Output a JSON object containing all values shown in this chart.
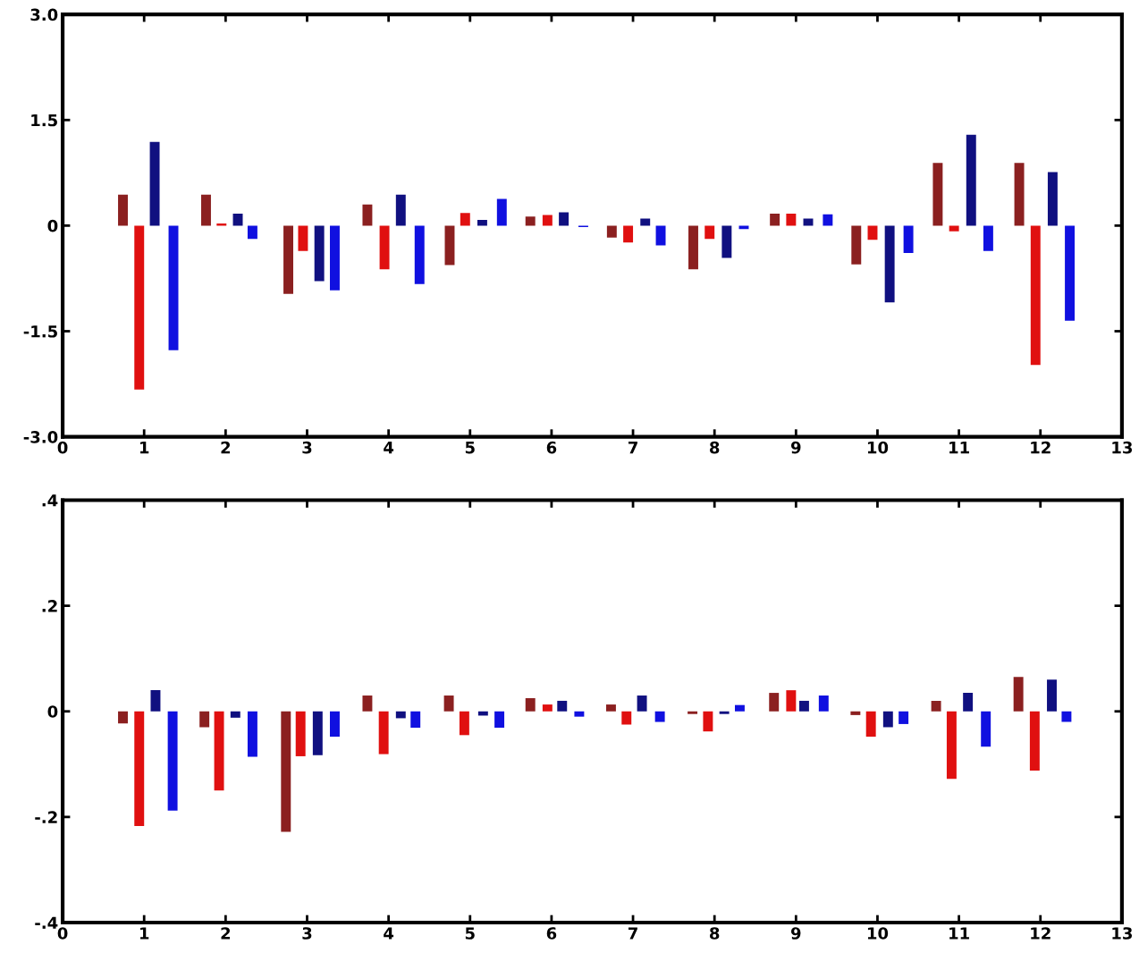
{
  "chart_data": [
    {
      "type": "bar",
      "xlim": [
        0,
        13
      ],
      "xticks": [
        0,
        1,
        2,
        3,
        4,
        5,
        6,
        7,
        8,
        9,
        10,
        11,
        12,
        13
      ],
      "ylim": [
        -3.0,
        3.0
      ],
      "yticks": [
        {
          "value": 3.0,
          "label": "3.0"
        },
        1.5,
        0,
        -1.5,
        {
          "value": -3.0,
          "label": "-3.0"
        }
      ],
      "grid": false,
      "series": [
        {
          "color": "#8b2020",
          "x": [
            0.74,
            1.76,
            2.77,
            3.74,
            4.75,
            5.74,
            6.74,
            7.74,
            8.74,
            9.74,
            10.74,
            11.74
          ],
          "values": [
            0.44,
            0.44,
            -0.97,
            0.3,
            -0.56,
            0.13,
            -0.17,
            -0.62,
            0.17,
            -0.55,
            0.89,
            0.89
          ]
        },
        {
          "color": "#e01010",
          "x": [
            0.94,
            1.95,
            2.95,
            3.95,
            4.94,
            5.95,
            6.94,
            7.94,
            8.94,
            9.94,
            10.94,
            11.94
          ],
          "values": [
            -2.33,
            0.03,
            -0.36,
            -0.62,
            0.18,
            0.15,
            -0.24,
            -0.19,
            0.17,
            -0.2,
            -0.08,
            -1.98
          ]
        },
        {
          "color": "#101080",
          "x": [
            1.13,
            2.15,
            3.15,
            4.15,
            5.15,
            6.15,
            7.15,
            8.15,
            9.15,
            10.15,
            11.15,
            12.15
          ],
          "values": [
            1.19,
            0.17,
            -0.79,
            0.44,
            0.08,
            0.19,
            0.1,
            -0.46,
            0.1,
            -1.09,
            1.29,
            0.76
          ]
        },
        {
          "color": "#1010e0",
          "x": [
            1.36,
            2.33,
            3.34,
            4.38,
            5.39,
            6.39,
            7.34,
            8.36,
            9.39,
            10.38,
            11.36,
            12.36
          ],
          "values": [
            -1.77,
            -0.19,
            -0.92,
            -0.83,
            0.38,
            -0.02,
            -0.28,
            -0.05,
            0.16,
            -0.39,
            -0.36,
            -1.35
          ]
        }
      ]
    },
    {
      "type": "bar",
      "xlim": [
        0,
        13
      ],
      "xticks": [
        0,
        1,
        2,
        3,
        4,
        5,
        6,
        7,
        8,
        9,
        10,
        11,
        12,
        13
      ],
      "ylim": [
        -0.4,
        0.4
      ],
      "yticks": [
        {
          "value": 0.4,
          "label": ".4"
        },
        {
          "value": 0.2,
          "label": ".2"
        },
        0,
        {
          "value": -0.2,
          "label": "-.2"
        },
        {
          "value": -0.4,
          "label": "-.4"
        }
      ],
      "grid": false,
      "series": [
        {
          "color": "#8b2020",
          "x": [
            0.74,
            1.74,
            2.74,
            3.74,
            4.74,
            5.74,
            6.73,
            7.73,
            8.73,
            9.73,
            10.72,
            11.73
          ],
          "values": [
            -0.023,
            -0.03,
            -0.228,
            0.03,
            0.03,
            0.025,
            0.013,
            -0.005,
            0.035,
            -0.007,
            0.02,
            0.065
          ]
        },
        {
          "color": "#e01010",
          "x": [
            0.94,
            1.92,
            2.92,
            3.94,
            4.93,
            5.95,
            6.92,
            7.92,
            8.94,
            9.92,
            10.91,
            11.93
          ],
          "values": [
            -0.217,
            -0.15,
            -0.085,
            -0.081,
            -0.045,
            0.013,
            -0.025,
            -0.038,
            0.04,
            -0.048,
            -0.128,
            -0.112
          ]
        },
        {
          "color": "#101080",
          "x": [
            1.14,
            2.12,
            3.13,
            4.15,
            5.16,
            6.13,
            7.11,
            8.12,
            9.1,
            10.13,
            11.11,
            12.14
          ],
          "values": [
            0.04,
            -0.012,
            -0.083,
            -0.013,
            -0.008,
            0.02,
            0.03,
            -0.005,
            0.02,
            -0.03,
            0.035,
            0.06
          ]
        },
        {
          "color": "#1010e0",
          "x": [
            1.35,
            2.33,
            3.34,
            4.33,
            5.36,
            6.34,
            7.33,
            8.31,
            9.34,
            10.32,
            11.33,
            12.32
          ],
          "values": [
            -0.188,
            -0.086,
            -0.048,
            -0.031,
            -0.031,
            -0.01,
            -0.02,
            0.012,
            0.03,
            -0.024,
            -0.067,
            -0.02
          ]
        }
      ]
    }
  ]
}
